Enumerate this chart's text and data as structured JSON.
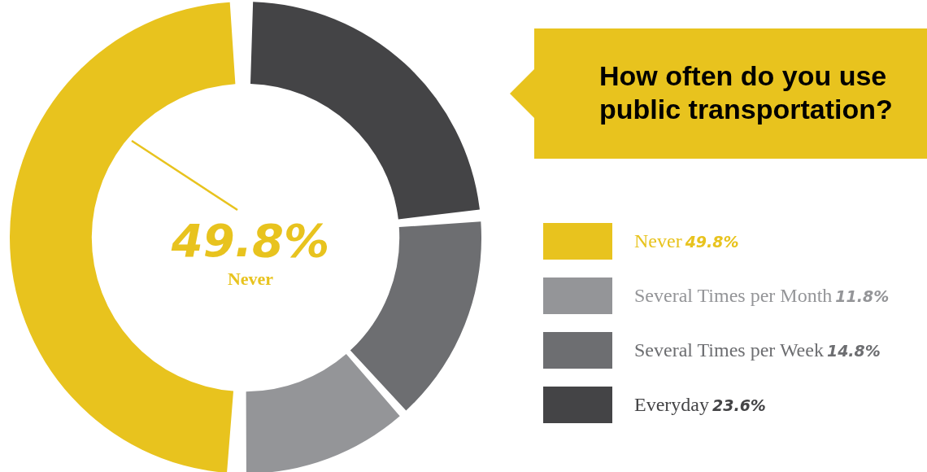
{
  "chart_data": {
    "type": "donut",
    "title": "How often do you use public transportation?",
    "categories": [
      "Everyday",
      "Several Times per Week",
      "Several Times per Month",
      "Never"
    ],
    "values": [
      23.6,
      14.8,
      11.8,
      49.8
    ],
    "colors": [
      "#444446",
      "#6d6e71",
      "#949598",
      "#e8c31e"
    ],
    "value_labels": [
      "23.6%",
      "14.8%",
      "11.8%",
      "49.8%"
    ],
    "annotations": [
      "49.8%",
      "Never"
    ],
    "needle": "Never",
    "legend": "right"
  }
}
